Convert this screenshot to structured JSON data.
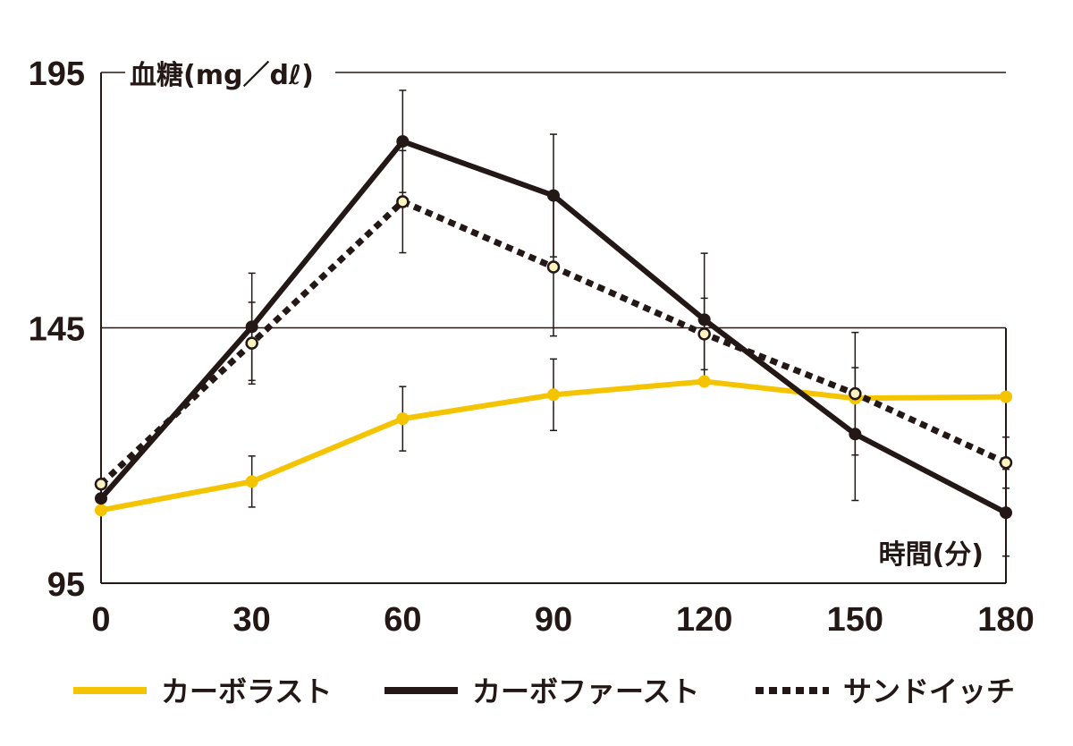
{
  "chart_data": {
    "type": "line",
    "title": "",
    "xlabel": "時間(分)",
    "ylabel": "血糖(mg／dℓ)",
    "x": [
      0,
      30,
      60,
      90,
      120,
      150,
      180
    ],
    "xlim": [
      0,
      180
    ],
    "ylim": [
      95,
      195
    ],
    "yticks": [
      95,
      145,
      195
    ],
    "xticks": [
      0,
      30,
      60,
      90,
      120,
      150,
      180
    ],
    "grid": "horizontal at 145 and 195",
    "legend_position": "bottom",
    "series": [
      {
        "name": "カーボラスト",
        "color": "#f5c400",
        "style": "solid",
        "marker": "filled",
        "values": [
          109.3,
          114.9,
          127.2,
          131.9,
          134.5,
          131.2,
          131.5
        ],
        "errors": [
          0,
          5,
          6.3,
          7,
          0,
          0,
          0
        ]
      },
      {
        "name": "カーボファースト",
        "color": "#231815",
        "style": "solid",
        "marker": "filled",
        "values": [
          111.6,
          145.2,
          181.5,
          170.9,
          146.6,
          124.2,
          108.8
        ],
        "errors": [
          0,
          10.5,
          10,
          12,
          13,
          13,
          8.5
        ]
      },
      {
        "name": "サンドイッチ",
        "color": "#231815",
        "style": "dotted",
        "marker": "open-cream",
        "values": [
          114.4,
          142.0,
          169.7,
          156.9,
          143.8,
          132.1,
          118.6
        ],
        "errors": [
          0,
          8,
          10,
          13.5,
          7,
          12,
          5
        ]
      }
    ]
  }
}
